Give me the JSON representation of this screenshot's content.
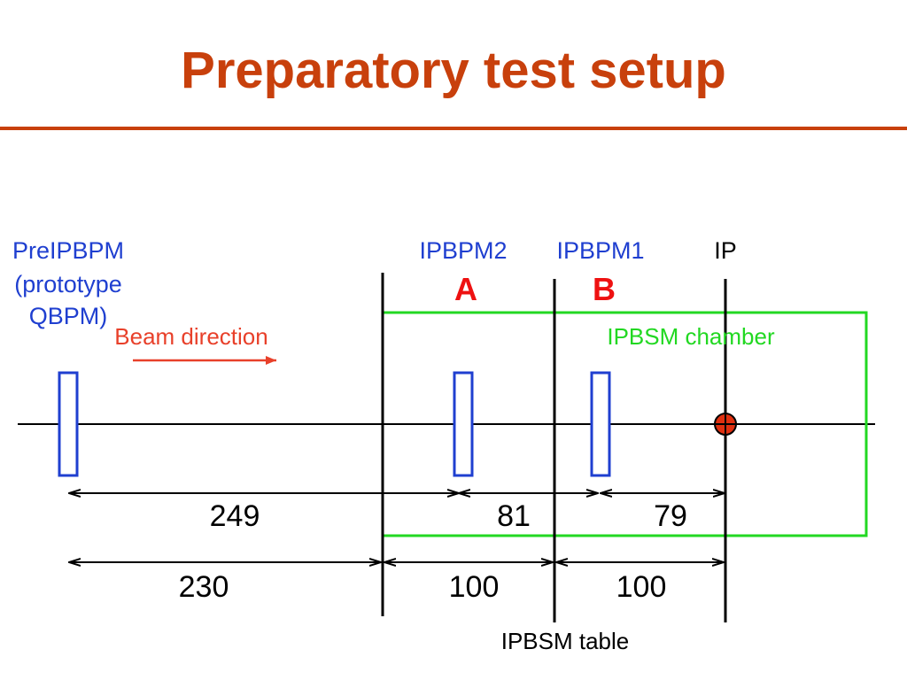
{
  "title": "Preparatory test setup",
  "colors": {
    "title": "#c8400c",
    "rule": "#c8400c",
    "blue_label": "#1f3fd0",
    "beam": "#e8402a",
    "chamber": "#22d822",
    "ab_letters": "#ee1111",
    "ip_marker": "#e03010",
    "line": "#000000"
  },
  "labels": {
    "pre_ipbpm": [
      "PreIPBPM",
      "(prototype",
      "QBPM)"
    ],
    "ipbpm2": "IPBPM2",
    "ipbpm1": "IPBPM1",
    "ip": "IP",
    "a": "A",
    "b": "B",
    "beam_direction": "Beam direction",
    "chamber": "IPBSM chamber",
    "table": "IPBSM table"
  },
  "distances_upper": [
    "249",
    "81",
    "79"
  ],
  "distances_lower": [
    "230",
    "100",
    "100"
  ]
}
